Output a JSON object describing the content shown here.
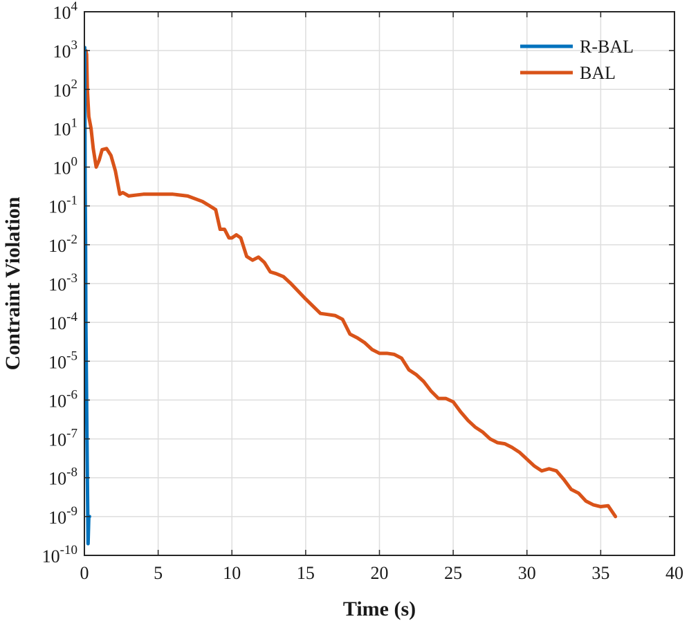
{
  "chart_data": {
    "type": "line",
    "title": "",
    "xlabel": "Time (s)",
    "ylabel": "Contraint Violation",
    "xlim": [
      0,
      40
    ],
    "ylim_exponents": [
      -10,
      4
    ],
    "yscale": "log",
    "grid": true,
    "legend_position": "top-right",
    "x_ticks": [
      "0",
      "5",
      "10",
      "15",
      "20",
      "25",
      "30",
      "35",
      "40"
    ],
    "y_ticks": [
      {
        "base": "10",
        "exp": "4"
      },
      {
        "base": "10",
        "exp": "3"
      },
      {
        "base": "10",
        "exp": "2"
      },
      {
        "base": "10",
        "exp": "1"
      },
      {
        "base": "10",
        "exp": "0"
      },
      {
        "base": "10",
        "exp": "-1"
      },
      {
        "base": "10",
        "exp": "-2"
      },
      {
        "base": "10",
        "exp": "-3"
      },
      {
        "base": "10",
        "exp": "-4"
      },
      {
        "base": "10",
        "exp": "-5"
      },
      {
        "base": "10",
        "exp": "-6"
      },
      {
        "base": "10",
        "exp": "-7"
      },
      {
        "base": "10",
        "exp": "-8"
      },
      {
        "base": "10",
        "exp": "-9"
      },
      {
        "base": "10",
        "exp": "-10"
      }
    ],
    "series": [
      {
        "name": "R-BAL",
        "color": "#0072BD",
        "x": [
          0,
          0.02,
          0.05,
          0.08,
          0.1,
          0.15,
          0.2,
          0.25,
          0.3,
          0.35
        ],
        "y": [
          1000,
          1200,
          0.3,
          0.01,
          0.0001,
          1e-06,
          1e-08,
          2e-10,
          1e-09,
          1e-09
        ]
      },
      {
        "name": "BAL",
        "color": "#D95319",
        "x": [
          0.1,
          0.15,
          0.2,
          0.3,
          0.45,
          0.6,
          0.8,
          1.0,
          1.2,
          1.5,
          1.8,
          2.1,
          2.4,
          2.6,
          2.8,
          3.0,
          3.5,
          4,
          5,
          6,
          7,
          8,
          8.5,
          8.9,
          9.2,
          9.5,
          9.8,
          10.0,
          10.3,
          10.6,
          11.0,
          11.4,
          11.8,
          12.2,
          12.6,
          13.0,
          13.5,
          14,
          15,
          16,
          16.5,
          17,
          17.5,
          18,
          18.5,
          19,
          19.5,
          20,
          20.5,
          21,
          21.5,
          22,
          22.5,
          23,
          23.5,
          24,
          24.5,
          25,
          25.5,
          26,
          26.5,
          27,
          27.5,
          28,
          28.5,
          29,
          29.5,
          30,
          30.5,
          31,
          31.5,
          32,
          32.5,
          33,
          33.5,
          34,
          34.5,
          35,
          35.5,
          36
        ],
        "y": [
          1000,
          800,
          100,
          20,
          10,
          3,
          1.0,
          1.5,
          2.8,
          3.0,
          2.0,
          0.8,
          0.2,
          0.22,
          0.2,
          0.18,
          0.19,
          0.2,
          0.2,
          0.2,
          0.18,
          0.13,
          0.1,
          0.08,
          0.025,
          0.025,
          0.015,
          0.015,
          0.018,
          0.015,
          0.005,
          0.004,
          0.0048,
          0.0035,
          0.002,
          0.0018,
          0.0015,
          0.001,
          0.0004,
          0.00017,
          0.00016,
          0.00015,
          0.00012,
          5e-05,
          4e-05,
          3e-05,
          2e-05,
          1.6e-05,
          1.6e-05,
          1.5e-05,
          1.2e-05,
          6e-06,
          4.5e-06,
          3e-06,
          1.7e-06,
          1.1e-06,
          1.1e-06,
          9e-07,
          5e-07,
          3e-07,
          2e-07,
          1.5e-07,
          1e-07,
          8e-08,
          7.5e-08,
          6e-08,
          4.5e-08,
          3e-08,
          2e-08,
          1.5e-08,
          1.7e-08,
          1.5e-08,
          9e-09,
          5e-09,
          4e-09,
          2.5e-09,
          2e-09,
          1.8e-09,
          1.9e-09,
          1e-09
        ]
      }
    ]
  }
}
